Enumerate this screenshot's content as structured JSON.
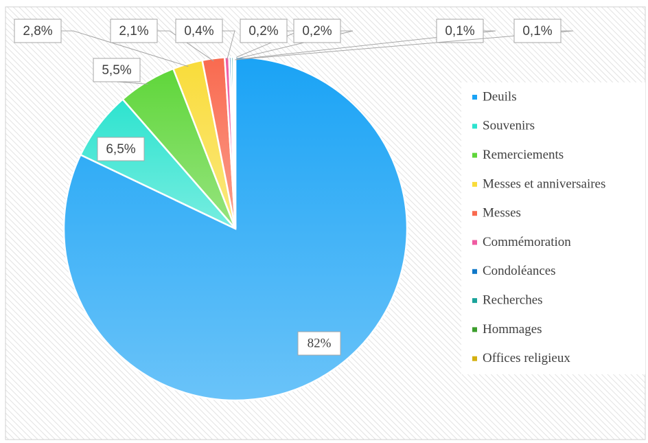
{
  "chart_data": {
    "type": "pie",
    "categories": [
      "Deuils",
      "Souvenirs",
      "Remerciements",
      "Messes et anniversaires",
      "Messes",
      "Commémoration",
      "Condoléances",
      "Recherches",
      "Hommages",
      "Offices religieux"
    ],
    "values": [
      82,
      6.5,
      5.5,
      2.8,
      2.1,
      0.4,
      0.2,
      0.2,
      0.1,
      0.1
    ],
    "value_labels": [
      "82%",
      "6,5%",
      "5,5%",
      "2,8%",
      "2,1%",
      "0,4%",
      "0,2%",
      "0,2%",
      "0,1%",
      "0,1%"
    ],
    "colors": [
      "#1aa3f5",
      "#2de3cf",
      "#5fd63a",
      "#f9dc3a",
      "#f96a4f",
      "#ef5ba1",
      "#1078c8",
      "#1aa39a",
      "#3c9e2c",
      "#d4b010"
    ],
    "legend": "right"
  }
}
